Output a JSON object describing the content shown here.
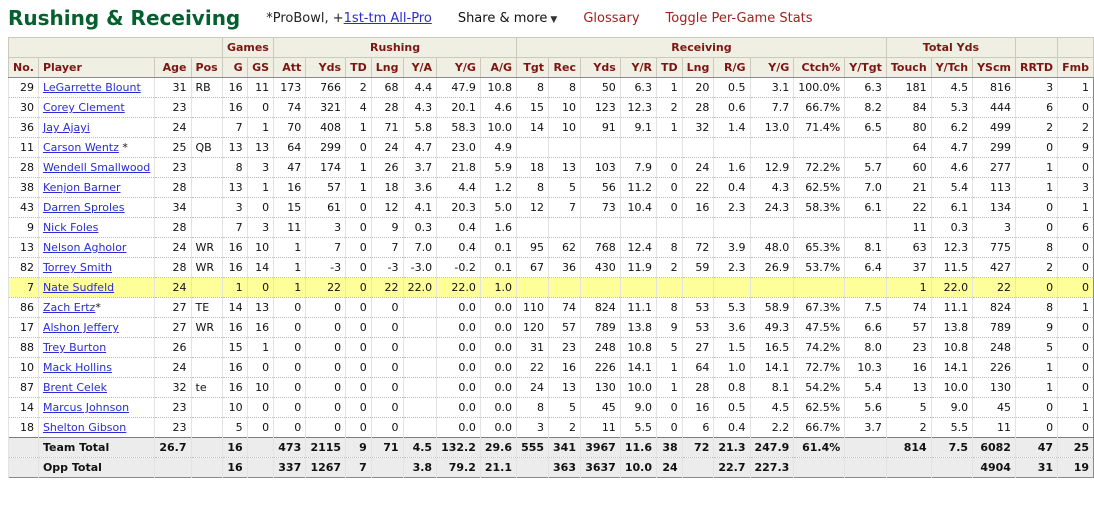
{
  "page": {
    "title": "Rushing & Receiving",
    "legend_prefix": "*ProBowl, +",
    "legend_link": "1st-tm All-Pro",
    "share_label": "Share & more",
    "share_caret": "▼",
    "glossary_label": "Glossary",
    "toggle_label": "Toggle Per-Game Stats"
  },
  "colors": {
    "title_green": "#04612f",
    "header_maroon": "#7d1511",
    "link_blue": "#2b2bd5",
    "nav_red": "#a32020",
    "highlight_yellow": "#ffff99",
    "header_bg": "#f0efe4",
    "total_bg": "#ececec"
  },
  "table": {
    "groups": [
      {
        "label": "",
        "span": 4
      },
      {
        "label": "Games",
        "span": 2
      },
      {
        "label": "Rushing",
        "span": 7
      },
      {
        "label": "Receiving",
        "span": 10
      },
      {
        "label": "Total Yds",
        "span": 3
      },
      {
        "label": "",
        "span": 1
      },
      {
        "label": "",
        "span": 1
      }
    ],
    "columns": [
      "No.",
      "Player",
      "Age",
      "Pos",
      "G",
      "GS",
      "Att",
      "Yds",
      "TD",
      "Lng",
      "Y/A",
      "Y/G",
      "A/G",
      "Tgt",
      "Rec",
      "Yds",
      "Y/R",
      "TD",
      "Lng",
      "R/G",
      "Y/G",
      "Ctch%",
      "Y/Tgt",
      "Touch",
      "Y/Tch",
      "YScm",
      "RRTD",
      "Fmb"
    ],
    "rows": [
      {
        "star": "",
        "highlight": false,
        "cells": [
          "29",
          "LeGarrette Blount",
          "31",
          "RB",
          "16",
          "11",
          "173",
          "766",
          "2",
          "68",
          "4.4",
          "47.9",
          "10.8",
          "8",
          "8",
          "50",
          "6.3",
          "1",
          "20",
          "0.5",
          "3.1",
          "100.0%",
          "6.3",
          "181",
          "4.5",
          "816",
          "3",
          "1"
        ]
      },
      {
        "star": "",
        "highlight": false,
        "cells": [
          "30",
          "Corey Clement",
          "23",
          "",
          "16",
          "0",
          "74",
          "321",
          "4",
          "28",
          "4.3",
          "20.1",
          "4.6",
          "15",
          "10",
          "123",
          "12.3",
          "2",
          "28",
          "0.6",
          "7.7",
          "66.7%",
          "8.2",
          "84",
          "5.3",
          "444",
          "6",
          "0"
        ]
      },
      {
        "star": "",
        "highlight": false,
        "cells": [
          "36",
          "Jay Ajayi",
          "24",
          "",
          "7",
          "1",
          "70",
          "408",
          "1",
          "71",
          "5.8",
          "58.3",
          "10.0",
          "14",
          "10",
          "91",
          "9.1",
          "1",
          "32",
          "1.4",
          "13.0",
          "71.4%",
          "6.5",
          "80",
          "6.2",
          "499",
          "2",
          "2"
        ]
      },
      {
        "star": " *",
        "highlight": false,
        "cells": [
          "11",
          "Carson Wentz",
          "25",
          "QB",
          "13",
          "13",
          "64",
          "299",
          "0",
          "24",
          "4.7",
          "23.0",
          "4.9",
          "",
          "",
          "",
          "",
          "",
          "",
          "",
          "",
          "",
          "",
          "64",
          "4.7",
          "299",
          "0",
          "9"
        ]
      },
      {
        "star": "",
        "highlight": false,
        "cells": [
          "28",
          "Wendell Smallwood",
          "23",
          "",
          "8",
          "3",
          "47",
          "174",
          "1",
          "26",
          "3.7",
          "21.8",
          "5.9",
          "18",
          "13",
          "103",
          "7.9",
          "0",
          "24",
          "1.6",
          "12.9",
          "72.2%",
          "5.7",
          "60",
          "4.6",
          "277",
          "1",
          "0"
        ]
      },
      {
        "star": "",
        "highlight": false,
        "cells": [
          "38",
          "Kenjon Barner",
          "28",
          "",
          "13",
          "1",
          "16",
          "57",
          "1",
          "18",
          "3.6",
          "4.4",
          "1.2",
          "8",
          "5",
          "56",
          "11.2",
          "0",
          "22",
          "0.4",
          "4.3",
          "62.5%",
          "7.0",
          "21",
          "5.4",
          "113",
          "1",
          "3"
        ]
      },
      {
        "star": "",
        "highlight": false,
        "cells": [
          "43",
          "Darren Sproles",
          "34",
          "",
          "3",
          "0",
          "15",
          "61",
          "0",
          "12",
          "4.1",
          "20.3",
          "5.0",
          "12",
          "7",
          "73",
          "10.4",
          "0",
          "16",
          "2.3",
          "24.3",
          "58.3%",
          "6.1",
          "22",
          "6.1",
          "134",
          "0",
          "1"
        ]
      },
      {
        "star": "",
        "highlight": false,
        "cells": [
          "9",
          "Nick Foles",
          "28",
          "",
          "7",
          "3",
          "11",
          "3",
          "0",
          "9",
          "0.3",
          "0.4",
          "1.6",
          "",
          "",
          "",
          "",
          "",
          "",
          "",
          "",
          "",
          "",
          "11",
          "0.3",
          "3",
          "0",
          "6"
        ]
      },
      {
        "star": "",
        "highlight": false,
        "cells": [
          "13",
          "Nelson Agholor",
          "24",
          "WR",
          "16",
          "10",
          "1",
          "7",
          "0",
          "7",
          "7.0",
          "0.4",
          "0.1",
          "95",
          "62",
          "768",
          "12.4",
          "8",
          "72",
          "3.9",
          "48.0",
          "65.3%",
          "8.1",
          "63",
          "12.3",
          "775",
          "8",
          "0"
        ]
      },
      {
        "star": "",
        "highlight": false,
        "cells": [
          "82",
          "Torrey Smith",
          "28",
          "WR",
          "16",
          "14",
          "1",
          "-3",
          "0",
          "-3",
          "-3.0",
          "-0.2",
          "0.1",
          "67",
          "36",
          "430",
          "11.9",
          "2",
          "59",
          "2.3",
          "26.9",
          "53.7%",
          "6.4",
          "37",
          "11.5",
          "427",
          "2",
          "0"
        ]
      },
      {
        "star": "",
        "highlight": true,
        "cells": [
          "7",
          "Nate Sudfeld",
          "24",
          "",
          "1",
          "0",
          "1",
          "22",
          "0",
          "22",
          "22.0",
          "22.0",
          "1.0",
          "",
          "",
          "",
          "",
          "",
          "",
          "",
          "",
          "",
          "",
          "1",
          "22.0",
          "22",
          "0",
          "0"
        ]
      },
      {
        "star": "*",
        "highlight": false,
        "cells": [
          "86",
          "Zach Ertz",
          "27",
          "TE",
          "14",
          "13",
          "0",
          "0",
          "0",
          "0",
          "",
          "0.0",
          "0.0",
          "110",
          "74",
          "824",
          "11.1",
          "8",
          "53",
          "5.3",
          "58.9",
          "67.3%",
          "7.5",
          "74",
          "11.1",
          "824",
          "8",
          "1"
        ]
      },
      {
        "star": "",
        "highlight": false,
        "cells": [
          "17",
          "Alshon Jeffery",
          "27",
          "WR",
          "16",
          "16",
          "0",
          "0",
          "0",
          "0",
          "",
          "0.0",
          "0.0",
          "120",
          "57",
          "789",
          "13.8",
          "9",
          "53",
          "3.6",
          "49.3",
          "47.5%",
          "6.6",
          "57",
          "13.8",
          "789",
          "9",
          "0"
        ]
      },
      {
        "star": "",
        "highlight": false,
        "cells": [
          "88",
          "Trey Burton",
          "26",
          "",
          "15",
          "1",
          "0",
          "0",
          "0",
          "0",
          "",
          "0.0",
          "0.0",
          "31",
          "23",
          "248",
          "10.8",
          "5",
          "27",
          "1.5",
          "16.5",
          "74.2%",
          "8.0",
          "23",
          "10.8",
          "248",
          "5",
          "0"
        ]
      },
      {
        "star": "",
        "highlight": false,
        "cells": [
          "10",
          "Mack Hollins",
          "24",
          "",
          "16",
          "0",
          "0",
          "0",
          "0",
          "0",
          "",
          "0.0",
          "0.0",
          "22",
          "16",
          "226",
          "14.1",
          "1",
          "64",
          "1.0",
          "14.1",
          "72.7%",
          "10.3",
          "16",
          "14.1",
          "226",
          "1",
          "0"
        ]
      },
      {
        "star": "",
        "highlight": false,
        "cells": [
          "87",
          "Brent Celek",
          "32",
          "te",
          "16",
          "10",
          "0",
          "0",
          "0",
          "0",
          "",
          "0.0",
          "0.0",
          "24",
          "13",
          "130",
          "10.0",
          "1",
          "28",
          "0.8",
          "8.1",
          "54.2%",
          "5.4",
          "13",
          "10.0",
          "130",
          "1",
          "0"
        ]
      },
      {
        "star": "",
        "highlight": false,
        "cells": [
          "14",
          "Marcus Johnson",
          "23",
          "",
          "10",
          "0",
          "0",
          "0",
          "0",
          "0",
          "",
          "0.0",
          "0.0",
          "8",
          "5",
          "45",
          "9.0",
          "0",
          "16",
          "0.5",
          "4.5",
          "62.5%",
          "5.6",
          "5",
          "9.0",
          "45",
          "0",
          "1"
        ]
      },
      {
        "star": "",
        "highlight": false,
        "cells": [
          "18",
          "Shelton Gibson",
          "23",
          "",
          "5",
          "0",
          "0",
          "0",
          "0",
          "0",
          "",
          "0.0",
          "0.0",
          "3",
          "2",
          "11",
          "5.5",
          "0",
          "6",
          "0.4",
          "2.2",
          "66.7%",
          "3.7",
          "2",
          "5.5",
          "11",
          "0",
          "0"
        ]
      }
    ],
    "totals": [
      {
        "cells": [
          "",
          "Team Total",
          "26.7",
          "",
          "16",
          "",
          "473",
          "2115",
          "9",
          "71",
          "4.5",
          "132.2",
          "29.6",
          "555",
          "341",
          "3967",
          "11.6",
          "38",
          "72",
          "21.3",
          "247.9",
          "61.4%",
          "",
          "814",
          "7.5",
          "6082",
          "47",
          "25"
        ]
      },
      {
        "cells": [
          "",
          "Opp Total",
          "",
          "",
          "16",
          "",
          "337",
          "1267",
          "7",
          "",
          "3.8",
          "79.2",
          "21.1",
          "",
          "363",
          "3637",
          "10.0",
          "24",
          "",
          "22.7",
          "227.3",
          "",
          "",
          "",
          "",
          "4904",
          "31",
          "19"
        ]
      }
    ]
  }
}
